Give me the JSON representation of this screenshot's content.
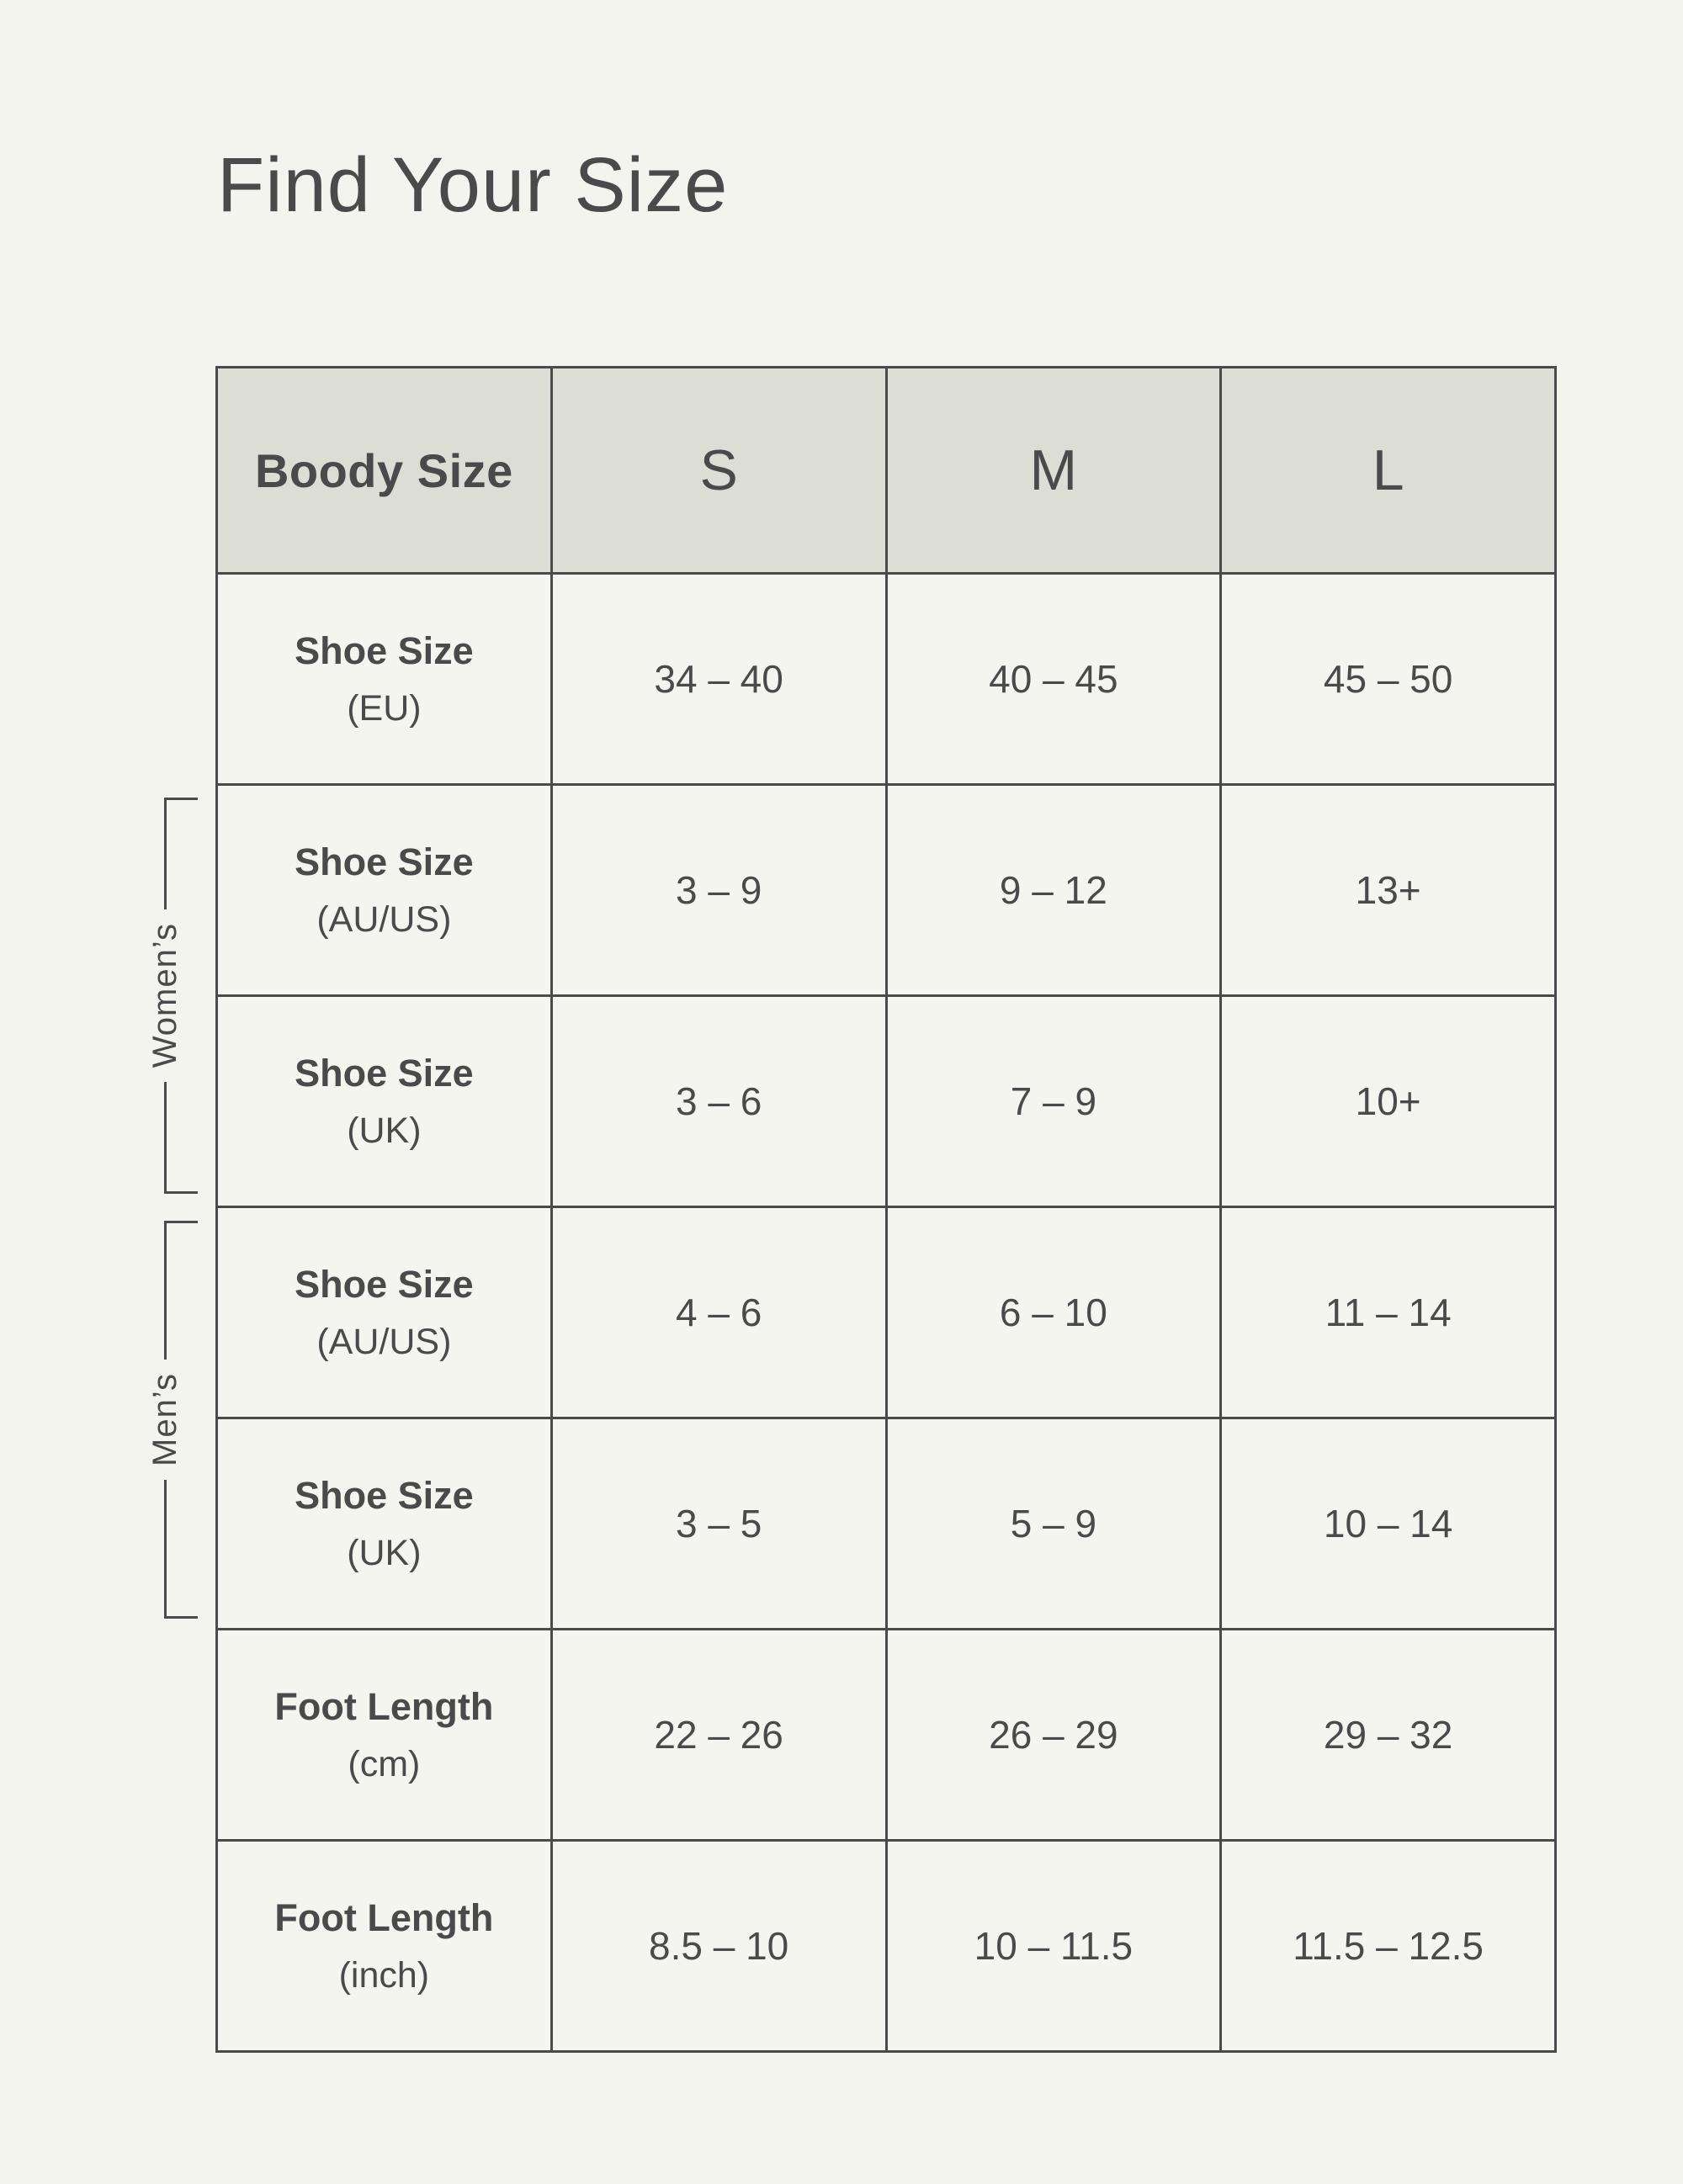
{
  "page": {
    "title": "Find Your Size"
  },
  "colors": {
    "page_background": "#f4f4ee",
    "header_background": "#dcddd4",
    "line": "#4a4a4a",
    "text": "#4a4a4a"
  },
  "brackets": [
    {
      "label": "Women’s"
    },
    {
      "label": "Men’s"
    }
  ],
  "table": {
    "header": [
      "Boody Size",
      "S",
      "M",
      "L"
    ],
    "rows": [
      {
        "label": "Shoe Size",
        "unit": "(EU)",
        "values": [
          "34 – 40",
          "40 – 45",
          "45 – 50"
        ]
      },
      {
        "label": "Shoe Size",
        "unit": "(AU/US)",
        "values": [
          "3 – 9",
          "9 – 12",
          "13+"
        ]
      },
      {
        "label": "Shoe Size",
        "unit": "(UK)",
        "values": [
          "3 – 6",
          "7 – 9",
          "10+"
        ]
      },
      {
        "label": "Shoe Size",
        "unit": "(AU/US)",
        "values": [
          "4 – 6",
          "6 – 10",
          "11 – 14"
        ]
      },
      {
        "label": "Shoe Size",
        "unit": "(UK)",
        "values": [
          "3 – 5",
          "5 – 9",
          "10 – 14"
        ]
      },
      {
        "label": "Foot Length",
        "unit": "(cm)",
        "values": [
          "22 – 26",
          "26 – 29",
          "29 – 32"
        ]
      },
      {
        "label": "Foot Length",
        "unit": "(inch)",
        "values": [
          "8.5 – 10",
          "10 – 11.5",
          "11.5 – 12.5"
        ]
      }
    ]
  },
  "chart_data": {
    "type": "table",
    "title": "Find Your Size",
    "columns": [
      "Boody Size",
      "S",
      "M",
      "L"
    ],
    "row_groups": [
      {
        "group": "",
        "rows": [
          {
            "label": "Shoe Size (EU)",
            "S": "34 – 40",
            "M": "40 – 45",
            "L": "45 – 50"
          }
        ]
      },
      {
        "group": "Women’s",
        "rows": [
          {
            "label": "Shoe Size (AU/US)",
            "S": "3 – 9",
            "M": "9 – 12",
            "L": "13+"
          },
          {
            "label": "Shoe Size (UK)",
            "S": "3 – 6",
            "M": "7 – 9",
            "L": "10+"
          }
        ]
      },
      {
        "group": "Men’s",
        "rows": [
          {
            "label": "Shoe Size (AU/US)",
            "S": "4 – 6",
            "M": "6 – 10",
            "L": "11 – 14"
          },
          {
            "label": "Shoe Size (UK)",
            "S": "3 – 5",
            "M": "5 – 9",
            "L": "10 – 14"
          }
        ]
      },
      {
        "group": "",
        "rows": [
          {
            "label": "Foot Length (cm)",
            "S": "22 – 26",
            "M": "26 – 29",
            "L": "29 – 32"
          },
          {
            "label": "Foot Length (inch)",
            "S": "8.5 – 10",
            "M": "10 – 11.5",
            "L": "11.5 – 12.5"
          }
        ]
      }
    ]
  }
}
